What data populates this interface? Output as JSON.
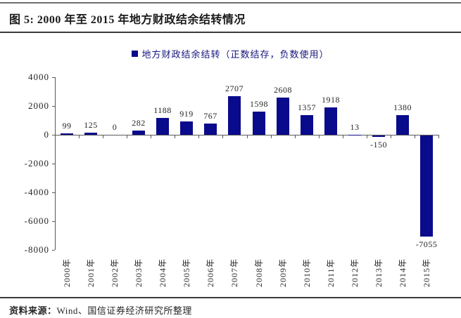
{
  "title": "图 5:  2000 年至 2015 年地方财政结余结转情况",
  "legend": {
    "label": "地方财政结余结转（正数结存，负数使用）",
    "marker_color": "#0a0a8c"
  },
  "source": {
    "prefix": "资料来源：",
    "text": "Wind、国信证券经济研究所整理"
  },
  "colors": {
    "bar": "#0a0a8c",
    "axis": "#595959",
    "legend_text": "#15157e",
    "label_text": "#262626"
  },
  "chart_data": {
    "type": "bar",
    "title": "2000年至2015年地方财政结余结转情况",
    "categories": [
      "2000年",
      "2001年",
      "2002年",
      "2003年",
      "2004年",
      "2005年",
      "2006年",
      "2007年",
      "2008年",
      "2009年",
      "2010年",
      "2011年",
      "2012年",
      "2013年",
      "2014年",
      "2015年"
    ],
    "values": [
      99,
      125,
      0,
      282,
      1188,
      919,
      767,
      2707,
      1598,
      2608,
      1357,
      1918,
      13,
      -150,
      1380,
      -7055
    ],
    "series_name": "地方财政结余结转（正数结存，负数使用）",
    "xlabel": "",
    "ylabel": "",
    "ylim": [
      -8000,
      4000
    ],
    "yticks": [
      4000,
      2000,
      0,
      -2000,
      -4000,
      -6000,
      -8000
    ],
    "grid": false,
    "legend_position": "top",
    "bar_color": "#0a0a8c",
    "data_labels": true
  }
}
